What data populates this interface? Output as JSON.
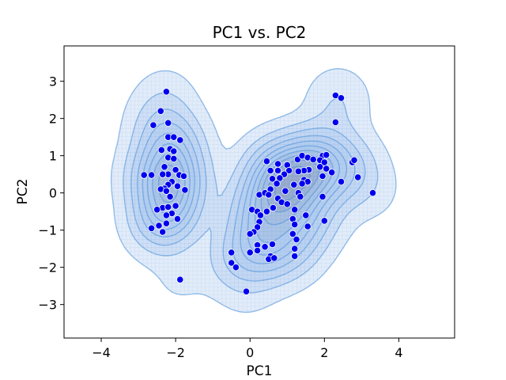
{
  "chart_data": {
    "type": "scatter",
    "title": "PC1 vs. PC2",
    "xlabel": "PC1",
    "ylabel": "PC2",
    "xlim": [
      -5,
      5.5
    ],
    "ylim": [
      -3.9,
      3.95
    ],
    "xticks": [
      -4,
      -2,
      0,
      2,
      4
    ],
    "xtick_labels": [
      "−4",
      "−2",
      "0",
      "2",
      "4"
    ],
    "yticks": [
      -3,
      -2,
      -1,
      0,
      1,
      2,
      3
    ],
    "ytick_labels": [
      "−3",
      "−2",
      "−1",
      "0",
      "1",
      "2",
      "3"
    ],
    "grid": false,
    "legend": "none",
    "marker_color": "#0000ee",
    "density_fill": "#a9c8ee",
    "density_line": "#4a90d9",
    "points": [
      {
        "x": -2.25,
        "y": 2.72
      },
      {
        "x": -2.4,
        "y": 2.2
      },
      {
        "x": -2.6,
        "y": 1.82
      },
      {
        "x": -2.2,
        "y": 1.88
      },
      {
        "x": -2.2,
        "y": 1.5
      },
      {
        "x": -2.05,
        "y": 1.5
      },
      {
        "x": -1.88,
        "y": 1.42
      },
      {
        "x": -2.38,
        "y": 1.15
      },
      {
        "x": -2.15,
        "y": 1.18
      },
      {
        "x": -2.05,
        "y": 1.12
      },
      {
        "x": -2.2,
        "y": 0.95
      },
      {
        "x": -2.05,
        "y": 0.92
      },
      {
        "x": -2.3,
        "y": 0.7
      },
      {
        "x": -2.0,
        "y": 0.62
      },
      {
        "x": -1.9,
        "y": 0.48
      },
      {
        "x": -1.78,
        "y": 0.45
      },
      {
        "x": -2.2,
        "y": 0.5
      },
      {
        "x": -2.35,
        "y": 0.5
      },
      {
        "x": -2.65,
        "y": 0.48
      },
      {
        "x": -2.85,
        "y": 0.48
      },
      {
        "x": -2.1,
        "y": 0.3
      },
      {
        "x": -2.2,
        "y": 0.22
      },
      {
        "x": -1.95,
        "y": 0.18
      },
      {
        "x": -2.3,
        "y": 0.12
      },
      {
        "x": -2.4,
        "y": 0.1
      },
      {
        "x": -2.25,
        "y": 0.05
      },
      {
        "x": -1.75,
        "y": 0.08
      },
      {
        "x": -2.15,
        "y": -0.1
      },
      {
        "x": -2.0,
        "y": -0.35
      },
      {
        "x": -2.35,
        "y": -0.4
      },
      {
        "x": -2.5,
        "y": -0.45
      },
      {
        "x": -2.2,
        "y": -0.38
      },
      {
        "x": -2.1,
        "y": -0.55
      },
      {
        "x": -2.25,
        "y": -0.6
      },
      {
        "x": -1.95,
        "y": -0.7
      },
      {
        "x": -2.25,
        "y": -0.82
      },
      {
        "x": -2.45,
        "y": -0.88
      },
      {
        "x": -2.65,
        "y": -0.95
      },
      {
        "x": -2.35,
        "y": -1.05
      },
      {
        "x": -1.88,
        "y": -2.33
      },
      {
        "x": 0.45,
        "y": 0.85
      },
      {
        "x": 0.75,
        "y": 0.78
      },
      {
        "x": 1.0,
        "y": 0.75
      },
      {
        "x": 1.28,
        "y": 0.9
      },
      {
        "x": 1.4,
        "y": 1.0
      },
      {
        "x": 1.55,
        "y": 0.95
      },
      {
        "x": 1.7,
        "y": 0.9
      },
      {
        "x": 1.95,
        "y": 1.0
      },
      {
        "x": 2.05,
        "y": 1.02
      },
      {
        "x": 1.88,
        "y": 0.88
      },
      {
        "x": 2.0,
        "y": 0.82
      },
      {
        "x": 1.88,
        "y": 0.7
      },
      {
        "x": 2.05,
        "y": 0.65
      },
      {
        "x": 2.2,
        "y": 0.55
      },
      {
        "x": 1.95,
        "y": 0.45
      },
      {
        "x": 1.58,
        "y": 0.62
      },
      {
        "x": 1.45,
        "y": 0.6
      },
      {
        "x": 1.3,
        "y": 0.58
      },
      {
        "x": 1.05,
        "y": 0.6
      },
      {
        "x": 0.92,
        "y": 0.5
      },
      {
        "x": 0.75,
        "y": 0.6
      },
      {
        "x": 0.55,
        "y": 0.6
      },
      {
        "x": 0.8,
        "y": 0.4
      },
      {
        "x": 0.6,
        "y": 0.38
      },
      {
        "x": 0.72,
        "y": 0.25
      },
      {
        "x": 1.45,
        "y": 0.35
      },
      {
        "x": 1.55,
        "y": 0.3
      },
      {
        "x": 1.4,
        "y": 0.25
      },
      {
        "x": 1.18,
        "y": 0.22
      },
      {
        "x": 0.55,
        "y": 0.1
      },
      {
        "x": 0.95,
        "y": 0.05
      },
      {
        "x": 0.25,
        "y": -0.05
      },
      {
        "x": 0.4,
        "y": 0.0
      },
      {
        "x": 0.5,
        "y": -0.05
      },
      {
        "x": 0.75,
        "y": -0.15
      },
      {
        "x": 0.85,
        "y": -0.25
      },
      {
        "x": 1.0,
        "y": -0.3
      },
      {
        "x": 1.3,
        "y": 0.0
      },
      {
        "x": 1.35,
        "y": -0.1
      },
      {
        "x": 1.95,
        "y": -0.1
      },
      {
        "x": 0.05,
        "y": -0.45
      },
      {
        "x": 0.2,
        "y": -0.5
      },
      {
        "x": 0.28,
        "y": -0.6
      },
      {
        "x": 0.45,
        "y": -0.5
      },
      {
        "x": 0.62,
        "y": -0.4
      },
      {
        "x": 1.2,
        "y": -0.45
      },
      {
        "x": 1.5,
        "y": -0.6
      },
      {
        "x": 1.15,
        "y": -0.7
      },
      {
        "x": 0.25,
        "y": -0.78
      },
      {
        "x": 0.2,
        "y": -0.92
      },
      {
        "x": 0.1,
        "y": -1.05
      },
      {
        "x": 0.0,
        "y": -1.1
      },
      {
        "x": 1.2,
        "y": -0.85
      },
      {
        "x": 1.55,
        "y": -0.9
      },
      {
        "x": 1.15,
        "y": -1.1
      },
      {
        "x": 2.0,
        "y": -0.75
      },
      {
        "x": 0.2,
        "y": -1.4
      },
      {
        "x": 0.4,
        "y": -1.45
      },
      {
        "x": 0.6,
        "y": -1.38
      },
      {
        "x": 1.25,
        "y": -1.25
      },
      {
        "x": 1.2,
        "y": -1.5
      },
      {
        "x": 0.0,
        "y": -1.6
      },
      {
        "x": 0.2,
        "y": -1.55
      },
      {
        "x": 0.55,
        "y": -1.7
      },
      {
        "x": 0.5,
        "y": -1.78
      },
      {
        "x": 0.65,
        "y": -1.75
      },
      {
        "x": 1.2,
        "y": -1.7
      },
      {
        "x": -0.5,
        "y": -1.6
      },
      {
        "x": -0.5,
        "y": -1.88
      },
      {
        "x": -0.38,
        "y": -2.0
      },
      {
        "x": -0.1,
        "y": -2.65
      },
      {
        "x": 2.3,
        "y": 2.62
      },
      {
        "x": 2.45,
        "y": 2.55
      },
      {
        "x": 2.3,
        "y": 1.9
      },
      {
        "x": 2.75,
        "y": 0.82
      },
      {
        "x": 2.8,
        "y": 0.88
      },
      {
        "x": 2.9,
        "y": 0.42
      },
      {
        "x": 2.45,
        "y": 0.3
      },
      {
        "x": 3.3,
        "y": 0.0
      }
    ]
  }
}
